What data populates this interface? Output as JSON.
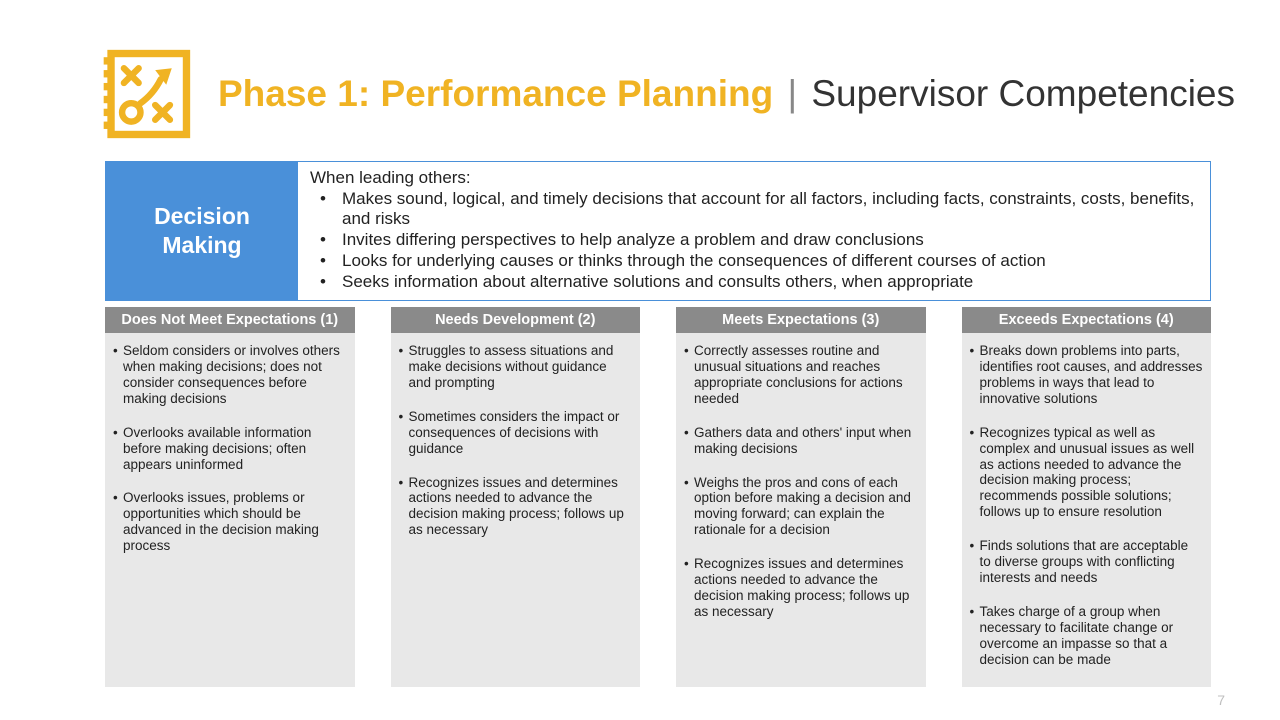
{
  "header": {
    "phase_bold": "Phase 1: Performance Planning",
    "separator": "|",
    "subtitle": "Supervisor Competencies",
    "icon_name": "strategy-icon",
    "icon_color": "#f0b323"
  },
  "definition": {
    "label": "Decision Making",
    "label_bg": "#4a90d9",
    "lead": "When leading others:",
    "bullets": [
      "Makes sound, logical, and timely decisions that account for all factors, including facts, constraints, costs, benefits, and risks",
      "Invites differing perspectives to help analyze a problem and draw conclusions",
      "Looks for underlying causes or thinks through the consequences of different courses of action",
      "Seeks information about alternative solutions and consults others, when appropriate"
    ]
  },
  "columns": [
    {
      "header": "Does Not Meet Expectations (1)",
      "items": [
        "Seldom considers or involves others when making decisions; does not consider consequences before making decisions",
        "Overlooks available information before making decisions; often appears uninformed",
        "Overlooks issues, problems or opportunities which should be advanced in the decision making process"
      ]
    },
    {
      "header": "Needs Development (2)",
      "items": [
        "Struggles to assess situations and make decisions without guidance and prompting",
        "Sometimes considers the impact or consequences of decisions with guidance",
        "Recognizes issues and determines actions needed to advance the decision making process; follows up as necessary"
      ]
    },
    {
      "header": "Meets Expectations (3)",
      "items": [
        "Correctly assesses routine and unusual situations and reaches appropriate conclusions for actions needed",
        "Gathers data and others' input when making decisions",
        "Weighs the pros and cons of each option before making a decision and moving forward; can explain the rationale for a decision",
        "Recognizes issues and determines actions needed to advance the decision making process; follows up as necessary"
      ]
    },
    {
      "header": "Exceeds Expectations (4)",
      "items": [
        "Breaks down problems into parts, identifies root causes, and addresses problems in ways that lead to innovative solutions",
        "Recognizes typical as well as complex and unusual issues as well as actions needed to advance the decision making process; recommends possible solutions; follows up to ensure resolution",
        "Finds solutions that are acceptable to diverse groups with conflicting interests and needs",
        "Takes charge of a group when necessary to facilitate change or overcome an impasse so that a decision can be made"
      ]
    }
  ],
  "styles": {
    "col_header_bg": "#8a8a8a",
    "col_bg": "#e8e8e8",
    "page_bg": "#ffffff"
  },
  "page_number": "7"
}
